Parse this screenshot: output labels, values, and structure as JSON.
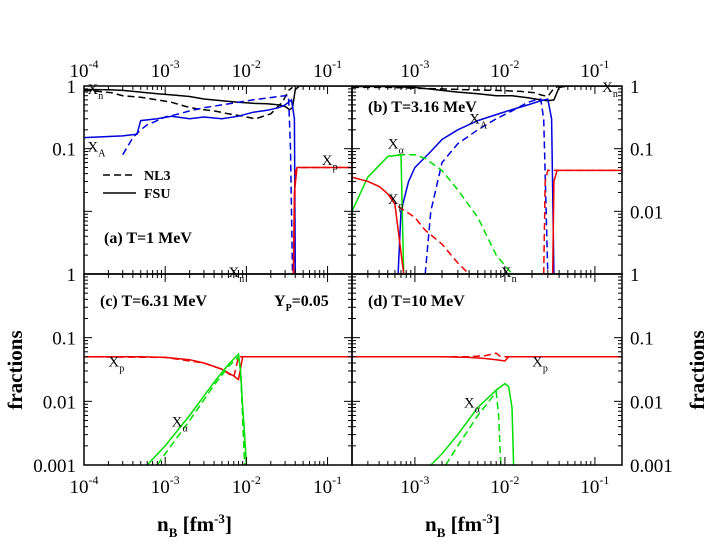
{
  "figure": {
    "xlabel_main": "n",
    "xlabel_sub": "B",
    "xlabel_unit_pre": " [fm",
    "xlabel_unit_sup": "-3",
    "xlabel_unit_post": "]",
    "ylabel": "fractions",
    "yp_label_main": "Y",
    "yp_label_sub": "P",
    "yp_label_value": "=0.05"
  },
  "legend": {
    "nl3": "NL3",
    "fsu": "FSU"
  },
  "colors": {
    "Xn": "#000000",
    "XA": "#0000dd",
    "Xp": "#ee0000",
    "Xalpha": "#00dd00",
    "axis": "#000000"
  },
  "x_ticks": [
    {
      "value": 0.0001,
      "base": "10",
      "exp": "-4"
    },
    {
      "value": 0.001,
      "base": "10",
      "exp": "-3"
    },
    {
      "value": 0.01,
      "base": "10",
      "exp": "-2"
    },
    {
      "value": 0.1,
      "base": "10",
      "exp": "-1"
    }
  ],
  "chart_data": [
    {
      "panel": "a",
      "type": "line",
      "title": "(a) T=1 MeV",
      "xscale": "log",
      "yscale": "log",
      "xlim": [
        0.0001,
        0.2
      ],
      "ylim": [
        0.001,
        1
      ],
      "y_tick_labels": [
        "1",
        "0.1"
      ],
      "x_tick_labels_top": true,
      "annotations": [
        {
          "main": "X",
          "sub": "n",
          "x": 0.00011,
          "y": 0.75
        },
        {
          "main": "X",
          "sub": "A",
          "x": 0.00011,
          "y": 0.09
        },
        {
          "main": "X",
          "sub": "p",
          "x": 0.085,
          "y": 0.055
        }
      ],
      "series": [
        {
          "name": "X_n",
          "model": "NL3",
          "color_key": "Xn",
          "dash": true,
          "x": [
            0.0001,
            0.00015,
            0.00022,
            0.0003,
            0.0005,
            0.0008,
            0.0012,
            0.0018,
            0.0025,
            0.004,
            0.006,
            0.009,
            0.013,
            0.02,
            0.028,
            0.033,
            0.037
          ],
          "y": [
            0.85,
            0.82,
            0.78,
            0.7,
            0.66,
            0.6,
            0.55,
            0.47,
            0.43,
            0.4,
            0.36,
            0.33,
            0.3,
            0.36,
            0.56,
            0.85,
            0.95
          ]
        },
        {
          "name": "X_n",
          "model": "FSU",
          "color_key": "Xn",
          "dash": false,
          "x": [
            0.0001,
            0.0002,
            0.0003,
            0.0005,
            0.0008,
            0.0012,
            0.002,
            0.003,
            0.005,
            0.008,
            0.012,
            0.018,
            0.025,
            0.03,
            0.034,
            0.037,
            0.04,
            0.045,
            0.055,
            0.08,
            0.12,
            0.2
          ],
          "y": [
            0.88,
            0.87,
            0.85,
            0.8,
            0.75,
            0.72,
            0.68,
            0.62,
            0.58,
            0.55,
            0.53,
            0.52,
            0.5,
            0.47,
            0.42,
            0.45,
            0.88,
            1.0,
            1.0,
            1.0,
            1.0,
            1.0
          ]
        },
        {
          "name": "X_A",
          "model": "NL3",
          "color_key": "XA",
          "dash": true,
          "x": [
            0.0003,
            0.0004,
            0.0005,
            0.0006,
            0.0008,
            0.001,
            0.0015,
            0.002,
            0.003,
            0.005,
            0.008,
            0.012,
            0.018,
            0.025,
            0.03,
            0.033,
            0.035,
            0.037
          ],
          "y": [
            0.08,
            0.15,
            0.2,
            0.24,
            0.28,
            0.32,
            0.36,
            0.4,
            0.45,
            0.5,
            0.55,
            0.6,
            0.64,
            0.68,
            0.7,
            0.7,
            0.1,
            0.001
          ]
        },
        {
          "name": "X_A",
          "model": "FSU",
          "color_key": "XA",
          "dash": false,
          "x": [
            0.0001,
            0.0003,
            0.00045,
            0.0005,
            0.0008,
            0.0012,
            0.002,
            0.003,
            0.005,
            0.008,
            0.012,
            0.018,
            0.025,
            0.03,
            0.033,
            0.036,
            0.039,
            0.04
          ],
          "y": [
            0.15,
            0.16,
            0.17,
            0.28,
            0.3,
            0.33,
            0.3,
            0.32,
            0.3,
            0.33,
            0.38,
            0.41,
            0.45,
            0.5,
            0.55,
            0.6,
            0.3,
            0.001
          ]
        },
        {
          "name": "X_p",
          "model": "NL3",
          "color_key": "Xp",
          "dash": true,
          "x": [
            0.038,
            0.04,
            0.045,
            0.06,
            0.1,
            0.2
          ],
          "y": [
            0.001,
            0.045,
            0.05,
            0.05,
            0.05,
            0.05
          ]
        },
        {
          "name": "X_p",
          "model": "FSU",
          "color_key": "Xp",
          "dash": false,
          "x": [
            0.038,
            0.039,
            0.042,
            0.05,
            0.08,
            0.12,
            0.2
          ],
          "y": [
            0.001,
            0.02,
            0.05,
            0.05,
            0.05,
            0.05,
            0.05
          ]
        }
      ]
    },
    {
      "panel": "b",
      "type": "line",
      "title": "(b) T=3.16 MeV",
      "xscale": "log",
      "yscale": "log",
      "xlim": [
        0.0002,
        0.2
      ],
      "ylim": [
        0.001,
        1
      ],
      "y_tick_labels_right": [
        "1",
        "0.1",
        "0.01"
      ],
      "x_tick_labels_top": true,
      "annotations": [
        {
          "main": "X",
          "sub": "n",
          "x": 0.12,
          "y": 0.8
        },
        {
          "main": "X",
          "sub": "A",
          "x": 0.004,
          "y": 0.25
        },
        {
          "main": "X",
          "sub": "α",
          "x": 0.0005,
          "y": 0.1
        },
        {
          "main": "X",
          "sub": "p",
          "x": 0.0005,
          "y": 0.013
        }
      ],
      "series": [
        {
          "name": "X_n",
          "model": "NL3",
          "color_key": "Xn",
          "dash": true,
          "x": [
            0.0002,
            0.0005,
            0.001,
            0.002,
            0.004,
            0.008,
            0.015,
            0.022,
            0.025,
            0.03,
            0.035,
            0.04,
            0.06,
            0.1,
            0.2
          ],
          "y": [
            0.95,
            0.95,
            0.92,
            0.9,
            0.87,
            0.85,
            0.82,
            0.78,
            0.72,
            0.68,
            0.92,
            1.0,
            1.0,
            1.0,
            1.0
          ]
        },
        {
          "name": "X_n",
          "model": "FSU",
          "color_key": "Xn",
          "dash": false,
          "x": [
            0.0002,
            0.0005,
            0.001,
            0.002,
            0.003,
            0.005,
            0.008,
            0.012,
            0.018,
            0.025,
            0.03,
            0.035,
            0.04,
            0.05,
            0.1,
            0.2
          ],
          "y": [
            0.98,
            0.98,
            0.95,
            0.85,
            0.8,
            0.75,
            0.7,
            0.7,
            0.65,
            0.6,
            0.58,
            0.6,
            0.95,
            1.0,
            1.0,
            1.0
          ]
        },
        {
          "name": "X_A",
          "model": "NL3",
          "color_key": "XA",
          "dash": true,
          "x": [
            0.0013,
            0.0015,
            0.002,
            0.003,
            0.005,
            0.008,
            0.012,
            0.018,
            0.022,
            0.025,
            0.027,
            0.03
          ],
          "y": [
            0.001,
            0.01,
            0.06,
            0.12,
            0.2,
            0.3,
            0.4,
            0.55,
            0.6,
            0.62,
            0.3,
            0.001
          ]
        },
        {
          "name": "X_A",
          "model": "FSU",
          "color_key": "XA",
          "dash": false,
          "x": [
            0.00065,
            0.0007,
            0.00085,
            0.001,
            0.0015,
            0.002,
            0.003,
            0.005,
            0.008,
            0.012,
            0.018,
            0.025,
            0.03,
            0.033,
            0.035
          ],
          "y": [
            0.001,
            0.01,
            0.03,
            0.05,
            0.09,
            0.14,
            0.2,
            0.28,
            0.35,
            0.42,
            0.5,
            0.58,
            0.62,
            0.3,
            0.001
          ]
        },
        {
          "name": "X_alpha",
          "model": "NL3",
          "color_key": "Xalpha",
          "dash": true,
          "x": [
            0.00065,
            0.001,
            0.0013,
            0.002,
            0.003,
            0.005,
            0.008,
            0.012
          ],
          "y": [
            0.08,
            0.08,
            0.07,
            0.045,
            0.022,
            0.008,
            0.002,
            0.001
          ]
        },
        {
          "name": "X_alpha",
          "model": "FSU",
          "color_key": "Xalpha",
          "dash": false,
          "x": [
            0.0002,
            0.0003,
            0.0005,
            0.0007,
            0.00075
          ],
          "y": [
            0.01,
            0.035,
            0.075,
            0.08,
            0.001
          ]
        },
        {
          "name": "X_p",
          "model": "NL3",
          "color_key": "Xp",
          "dash": true,
          "x": [
            0.00065,
            0.001,
            0.0013,
            0.002,
            0.003,
            0.004,
            0.005
          ],
          "y": [
            0.012,
            0.008,
            0.005,
            0.003,
            0.0015,
            0.001,
            0.001
          ]
        },
        {
          "name": "X_p",
          "model": "FSU",
          "color_key": "Xp",
          "dash": false,
          "x": [
            0.0002,
            0.0003,
            0.0004,
            0.0005,
            0.0006,
            0.00075
          ],
          "y": [
            0.035,
            0.03,
            0.025,
            0.019,
            0.013,
            0.001
          ]
        },
        {
          "name": "X_p",
          "model": "NL3 high density",
          "color_key": "Xp",
          "dash": true,
          "x": [
            0.027,
            0.028,
            0.03,
            0.04,
            0.06,
            0.1,
            0.2
          ],
          "y": [
            0.001,
            0.03,
            0.045,
            0.045,
            0.045,
            0.045,
            0.045
          ]
        },
        {
          "name": "X_p",
          "model": "FSU high density",
          "color_key": "Xp",
          "dash": false,
          "x": [
            0.034,
            0.035,
            0.038,
            0.05,
            0.08,
            0.12,
            0.2
          ],
          "y": [
            0.001,
            0.03,
            0.045,
            0.045,
            0.045,
            0.045,
            0.045
          ]
        }
      ]
    },
    {
      "panel": "c",
      "type": "line",
      "title": "(c) T=6.31 MeV",
      "xscale": "log",
      "yscale": "log",
      "xlim": [
        0.0001,
        0.2
      ],
      "ylim": [
        0.001,
        1
      ],
      "y_tick_labels": [
        "1",
        "0.1",
        "0.01",
        "0.001"
      ],
      "x_tick_labels_bottom": true,
      "annotations": [
        {
          "main": "X",
          "sub": "n",
          "x": 0.006,
          "y": 0.9
        },
        {
          "main": "X",
          "sub": "p",
          "x": 0.0002,
          "y": 0.035
        },
        {
          "main": "X",
          "sub": "α",
          "x": 0.0012,
          "y": 0.004
        }
      ],
      "series": [
        {
          "name": "X_p",
          "model": "NL3",
          "color_key": "Xp",
          "dash": true,
          "x": [
            0.0001,
            0.001,
            0.003,
            0.005,
            0.007,
            0.008,
            0.009,
            0.2
          ],
          "y": [
            0.05,
            0.049,
            0.04,
            0.032,
            0.024,
            0.05,
            0.05,
            0.05
          ]
        },
        {
          "name": "X_p",
          "model": "FSU",
          "color_key": "Xp",
          "dash": false,
          "x": [
            0.0001,
            0.0005,
            0.001,
            0.002,
            0.003,
            0.005,
            0.007,
            0.008,
            0.009,
            0.2
          ],
          "y": [
            0.05,
            0.05,
            0.049,
            0.045,
            0.04,
            0.032,
            0.025,
            0.022,
            0.05,
            0.05
          ]
        },
        {
          "name": "X_alpha",
          "model": "NL3",
          "color_key": "Xalpha",
          "dash": true,
          "x": [
            0.0008,
            0.001,
            0.002,
            0.004,
            0.006,
            0.008,
            0.0085,
            0.009,
            0.0095
          ],
          "y": [
            0.001,
            0.0015,
            0.005,
            0.018,
            0.035,
            0.05,
            0.03,
            0.005,
            0.001
          ]
        },
        {
          "name": "X_alpha",
          "model": "FSU",
          "color_key": "Xalpha",
          "dash": false,
          "x": [
            0.0006,
            0.001,
            0.002,
            0.004,
            0.006,
            0.008,
            0.0085,
            0.009,
            0.0095,
            0.01
          ],
          "y": [
            0.001,
            0.002,
            0.006,
            0.02,
            0.038,
            0.055,
            0.03,
            0.008,
            0.003,
            0.001
          ]
        }
      ]
    },
    {
      "panel": "d",
      "type": "line",
      "title": "(d) T=10 MeV",
      "xscale": "log",
      "yscale": "log",
      "xlim": [
        0.0002,
        0.2
      ],
      "ylim": [
        0.001,
        1
      ],
      "y_tick_labels_right": [
        "1",
        "0.1",
        "0.01",
        "0.001"
      ],
      "x_tick_labels_bottom": true,
      "annotations": [
        {
          "main": "X",
          "sub": "n",
          "x": 0.009,
          "y": 0.9
        },
        {
          "main": "X",
          "sub": "p",
          "x": 0.02,
          "y": 0.035
        },
        {
          "main": "X",
          "sub": "α",
          "x": 0.0035,
          "y": 0.008
        }
      ],
      "series": [
        {
          "name": "X_p",
          "model": "NL3",
          "color_key": "Xp",
          "dash": true,
          "x": [
            0.0002,
            0.002,
            0.004,
            0.006,
            0.008,
            0.009,
            0.012,
            0.2
          ],
          "y": [
            0.05,
            0.05,
            0.05,
            0.052,
            0.057,
            0.05,
            0.05,
            0.05
          ]
        },
        {
          "name": "X_p",
          "model": "FSU",
          "color_key": "Xp",
          "dash": false,
          "x": [
            0.0002,
            0.002,
            0.004,
            0.006,
            0.008,
            0.009,
            0.01,
            0.011,
            0.012,
            0.2
          ],
          "y": [
            0.05,
            0.05,
            0.049,
            0.047,
            0.045,
            0.044,
            0.043,
            0.05,
            0.05,
            0.05
          ]
        },
        {
          "name": "X_alpha",
          "model": "NL3",
          "color_key": "Xalpha",
          "dash": true,
          "x": [
            0.0022,
            0.003,
            0.005,
            0.007,
            0.008,
            0.0085,
            0.009
          ],
          "y": [
            0.001,
            0.002,
            0.006,
            0.011,
            0.014,
            0.006,
            0.001
          ]
        },
        {
          "name": "X_alpha",
          "model": "FSU",
          "color_key": "Xalpha",
          "dash": false,
          "x": [
            0.0015,
            0.002,
            0.003,
            0.005,
            0.008,
            0.01,
            0.011,
            0.012,
            0.0125
          ],
          "y": [
            0.001,
            0.0015,
            0.003,
            0.008,
            0.015,
            0.019,
            0.017,
            0.008,
            0.001
          ]
        }
      ]
    }
  ]
}
